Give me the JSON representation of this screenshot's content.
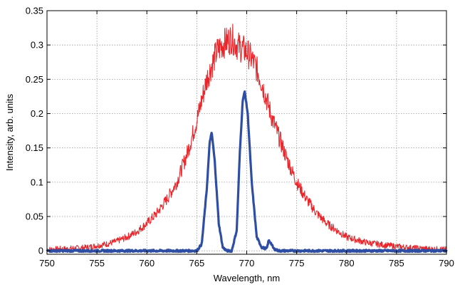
{
  "chart_data": {
    "type": "line",
    "title": "",
    "xlabel": "Wavelength, nm",
    "ylabel": "Intensity, arb. units",
    "xlim": [
      750,
      790
    ],
    "ylim": [
      -0.005,
      0.35
    ],
    "grid": true,
    "legend": "none",
    "x_ticks": [
      750,
      755,
      760,
      765,
      770,
      775,
      780,
      785,
      790
    ],
    "y_ticks": [
      0,
      0.05,
      0.1,
      0.15,
      0.2,
      0.25,
      0.3,
      0.35
    ],
    "x_tick_labels": [
      "750",
      "755",
      "760",
      "765",
      "770",
      "775",
      "780",
      "785",
      "790"
    ],
    "y_tick_labels": [
      "0",
      "0.05",
      "0.1",
      "0.15",
      "0.2",
      "0.25",
      "0.3",
      "0.35"
    ],
    "series": [
      {
        "color": "#e8262b",
        "x": [
          750,
          752,
          754,
          756,
          757,
          758,
          759,
          760,
          761,
          762,
          763,
          764,
          765,
          765.5,
          766,
          766.5,
          767,
          767.5,
          768,
          768.5,
          769,
          769.5,
          770,
          770.5,
          771,
          771.5,
          772,
          772.5,
          773,
          773.5,
          774,
          775,
          776,
          777,
          778,
          779,
          780,
          782,
          784,
          786,
          788,
          790
        ],
        "y": [
          0.002,
          0.003,
          0.005,
          0.01,
          0.014,
          0.02,
          0.028,
          0.04,
          0.055,
          0.075,
          0.1,
          0.14,
          0.19,
          0.22,
          0.25,
          0.27,
          0.29,
          0.3,
          0.305,
          0.31,
          0.3,
          0.295,
          0.29,
          0.28,
          0.265,
          0.245,
          0.22,
          0.195,
          0.175,
          0.155,
          0.135,
          0.1,
          0.075,
          0.055,
          0.04,
          0.03,
          0.02,
          0.012,
          0.008,
          0.005,
          0.003,
          0.002
        ]
      },
      {
        "color": "#2e4ea3",
        "x": [
          750,
          760,
          764,
          765,
          765.5,
          766,
          766.3,
          766.5,
          766.8,
          767.2,
          767.6,
          768,
          768.5,
          769,
          769.3,
          769.6,
          769.8,
          770.1,
          770.5,
          771,
          771.5,
          772,
          772.2,
          772.4,
          772.7,
          773.2,
          775,
          780,
          790
        ],
        "y": [
          0,
          0,
          0,
          0,
          0.01,
          0.09,
          0.16,
          0.172,
          0.13,
          0.04,
          0.005,
          0,
          0,
          0.03,
          0.14,
          0.22,
          0.232,
          0.2,
          0.1,
          0.02,
          0.005,
          0.003,
          0.015,
          0.012,
          0.003,
          0,
          0,
          0,
          0
        ]
      }
    ]
  }
}
